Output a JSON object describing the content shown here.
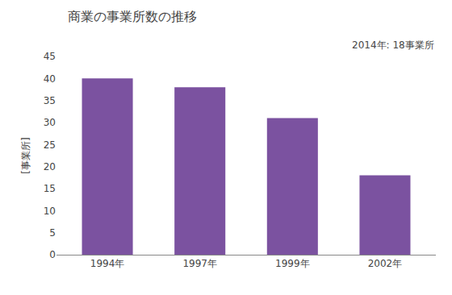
{
  "chart_data": {
    "type": "bar",
    "title": "商業の事業所数の推移",
    "ylabel": "[事業所]",
    "annotation": "2014年: 18事業所",
    "categories": [
      "1994年",
      "1997年",
      "1999年",
      "2002年"
    ],
    "values": [
      40,
      38,
      31,
      18
    ],
    "color": "#7B52A0",
    "ylim": [
      0,
      45
    ],
    "yticks": [
      0,
      5,
      10,
      15,
      20,
      25,
      30,
      35,
      40,
      45
    ],
    "grid": false
  }
}
